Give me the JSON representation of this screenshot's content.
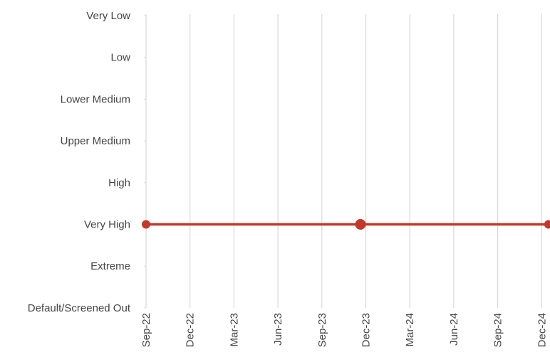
{
  "chart_data": {
    "type": "line",
    "title": "",
    "xlabel": "",
    "ylabel": "",
    "x_ticks": [
      "Sep-22",
      "Dec-22",
      "Mar-23",
      "Jun-23",
      "Sep-23",
      "Dec-23",
      "Mar-24",
      "Jun-24",
      "Sep-24",
      "Dec-24"
    ],
    "y_categories": [
      "Very Low",
      "Low",
      "Lower Medium",
      "Upper Medium",
      "High",
      "Very High",
      "Extreme",
      "Default/Screened Out"
    ],
    "series": [
      {
        "color": "#c0392b",
        "points": [
          {
            "x": "2022-09-01",
            "y": "Very High",
            "marker": true
          },
          {
            "x": "2023-11-20",
            "y": "Very High",
            "marker": true
          },
          {
            "x": "2024-12-15",
            "y": "Very High",
            "marker": true
          }
        ]
      }
    ],
    "grid": true,
    "legend": "none",
    "colors": {
      "line": "#c0392b",
      "grid": "#d9d9d9",
      "text": "#444444"
    }
  }
}
